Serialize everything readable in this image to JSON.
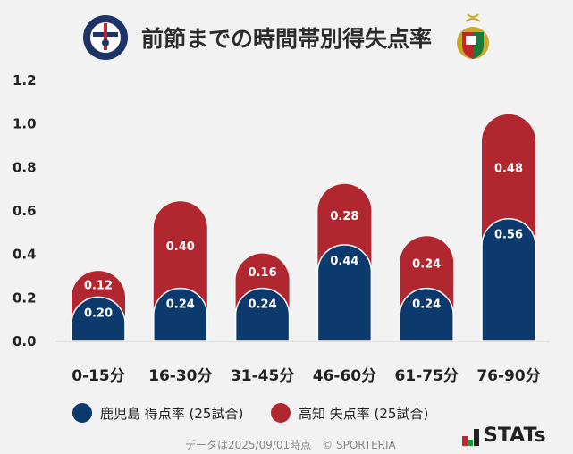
{
  "title": "前節までの時間帯別得失点率",
  "logos": {
    "home": "KAGOSHIMA UNITED FC",
    "away": "高知ユナイテッドSC crest"
  },
  "chart_data": {
    "type": "bar",
    "stacked": true,
    "title": "前節までの時間帯別得失点率",
    "categories": [
      "0-15分",
      "16-30分",
      "31-45分",
      "46-60分",
      "61-75分",
      "76-90分"
    ],
    "series": [
      {
        "name": "鹿児島 得点率 (25試合)",
        "color": "#0d3a6c",
        "values": [
          0.2,
          0.24,
          0.24,
          0.44,
          0.24,
          0.56
        ]
      },
      {
        "name": "高知 失点率 (25試合)",
        "color": "#b0272f",
        "values": [
          0.12,
          0.4,
          0.16,
          0.28,
          0.24,
          0.48
        ]
      }
    ],
    "ylim": [
      0,
      1.2
    ],
    "yticks": [
      "0.0",
      "0.2",
      "0.4",
      "0.6",
      "0.8",
      "1.0",
      "1.2"
    ],
    "grid": false,
    "legend": "bottom"
  },
  "footer": "データは2025/09/01時点　© SPORTERIA",
  "brand": "STATs"
}
